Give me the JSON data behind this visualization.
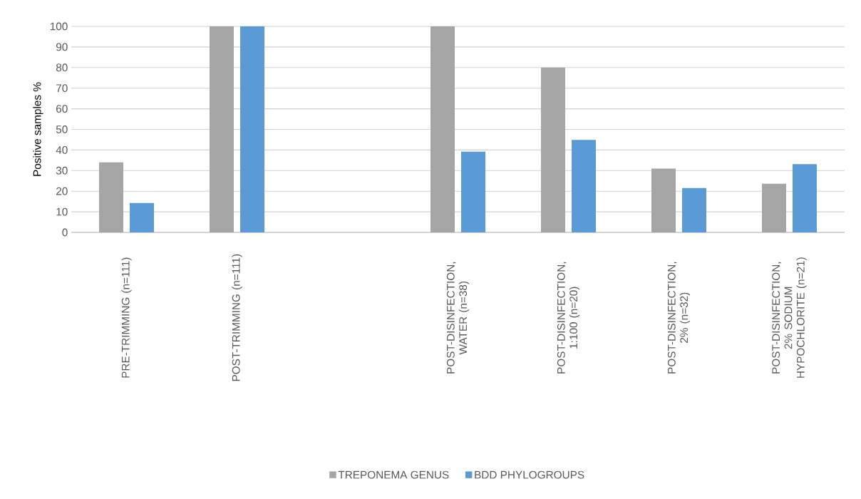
{
  "chart_data": {
    "type": "bar",
    "ylabel": "Positive samples %",
    "categories": [
      "PRE-TRIMMING (n=111)",
      "POST-TRIMMING (n=111)",
      null,
      "POST-DISINFECTION, WATER (n=38)",
      "POST-DISINFECTION, 1:100 (n=20)",
      "POST-DISINFECTION, 2% (n=32)",
      "POST-DISINFECTION, 2% SODIUM HYPOCHLORITE (n=21)"
    ],
    "series": [
      {
        "name": "TREPONEMA GENUS",
        "color": "#a5a5a5",
        "values": [
          34,
          100,
          null,
          100,
          80,
          31,
          23.6
        ]
      },
      {
        "name": "BDD PHYLOGROUPS",
        "color": "#5b9bd5",
        "values": [
          14.3,
          100,
          null,
          39.2,
          44.9,
          21.5,
          33.1
        ]
      }
    ],
    "ylim": [
      0,
      100
    ],
    "yticks": [
      0,
      10,
      20,
      30,
      40,
      50,
      60,
      70,
      80,
      90,
      100
    ],
    "grid": "y",
    "legend": "bottom"
  }
}
